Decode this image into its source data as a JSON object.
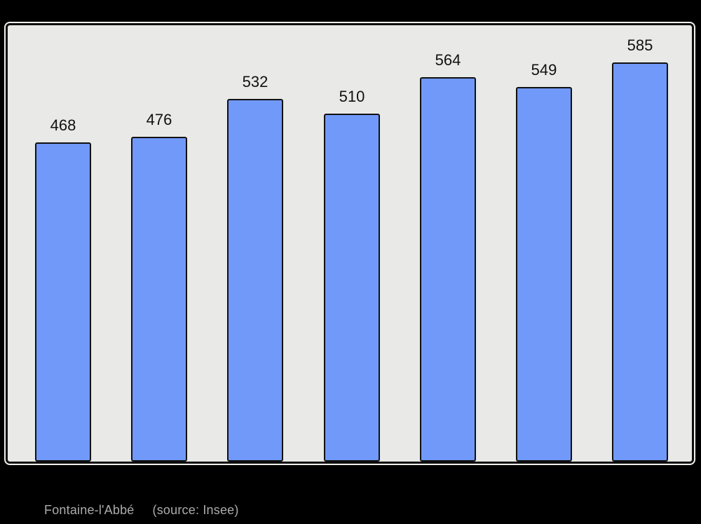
{
  "caption": {
    "title": "Fontaine-l'Abbé",
    "source": "(source: Insee)"
  },
  "colors": {
    "page_background": "#000000",
    "plot_background": "#e9e9e7",
    "bar_fill": "#7199fa",
    "bar_border": "#111111",
    "value_label_text": "#111111",
    "caption_text": "#ababab"
  },
  "chart_data": {
    "type": "bar",
    "values": [
      468,
      476,
      532,
      510,
      564,
      549,
      585
    ],
    "value_labels": [
      "468",
      "476",
      "532",
      "510",
      "564",
      "549",
      "585"
    ],
    "title": "Fontaine-l'Abbé",
    "annotation": "(source: Insee)",
    "xlabel": "",
    "ylabel": "",
    "baseline": 0,
    "grid": false,
    "legend": false,
    "layout_hints": {
      "bars_sit_on_bottom_border": true,
      "labels_above_bars": true,
      "category_axis_labels_visible": false
    }
  }
}
